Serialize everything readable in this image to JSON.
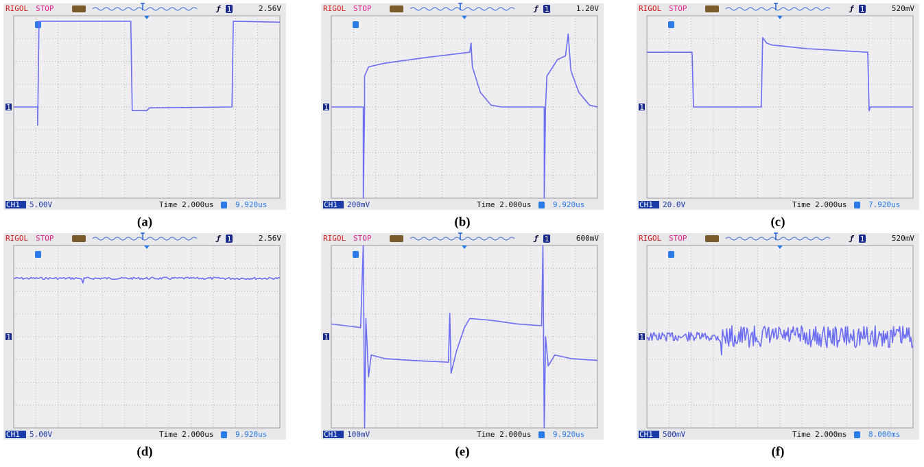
{
  "panels": [
    {
      "brand": "RIGOL",
      "status": "STOP",
      "trigger_source": "1",
      "trigger_level": "2.56V",
      "ground_marker": "1",
      "channel": "CH1",
      "scale": "5.00V",
      "time": "Time 2.000us",
      "offset": "9.920us",
      "caption": "(a)"
    },
    {
      "brand": "RIGOL",
      "status": "STOP",
      "trigger_source": "1",
      "trigger_level": "1.20V",
      "ground_marker": "1",
      "channel": "CH1",
      "scale": "200mV",
      "time": "Time 2.000us",
      "offset": "9.920us",
      "caption": "(b)"
    },
    {
      "brand": "RIGOL",
      "status": "STOP",
      "trigger_source": "1",
      "trigger_level": "520mV",
      "ground_marker": "1",
      "channel": "CH1",
      "scale": "20.0V",
      "time": "Time 2.000us",
      "offset": "7.920us",
      "caption": "(c)"
    },
    {
      "brand": "RIGOL",
      "status": "STOP",
      "trigger_source": "1",
      "trigger_level": "2.56V",
      "ground_marker": "1",
      "channel": "CH1",
      "scale": "5.00V",
      "time": "Time 2.000us",
      "offset": "9.920us",
      "caption": "(d)"
    },
    {
      "brand": "RIGOL",
      "status": "STOP",
      "trigger_source": "1",
      "trigger_level": "600mV",
      "ground_marker": "1",
      "channel": "CH1",
      "scale": "100mV",
      "time": "Time 2.000us",
      "offset": "9.920us",
      "caption": "(e)"
    },
    {
      "brand": "RIGOL",
      "status": "STOP",
      "trigger_source": "1",
      "trigger_level": "520mV",
      "ground_marker": "1",
      "channel": "CH1",
      "scale": "500mV",
      "time": "Time 2.000ms",
      "offset": "8.000ms",
      "caption": "(f)"
    }
  ]
}
